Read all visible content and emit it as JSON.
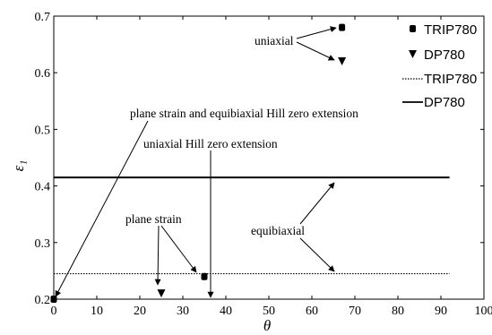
{
  "chart_data": {
    "type": "scatter",
    "xlabel": "θ",
    "ylabel": "ε₁",
    "xlim": [
      0,
      100
    ],
    "ylim": [
      0.2,
      0.7
    ],
    "x_ticks": [
      "0",
      "10",
      "20",
      "30",
      "40",
      "50",
      "60",
      "70",
      "80",
      "90",
      "100"
    ],
    "y_ticks": [
      "0.2",
      "0.3",
      "0.4",
      "0.5",
      "0.6",
      "0.7"
    ],
    "grid": false,
    "legend_position": "top-right",
    "series": [
      {
        "name": "TRIP780",
        "kind": "points",
        "marker": "square",
        "points": [
          [
            0,
            0.2
          ],
          [
            35,
            0.24
          ],
          [
            67,
            0.68
          ]
        ]
      },
      {
        "name": "DP780",
        "kind": "points",
        "marker": "triangle-down",
        "points": [
          [
            25,
            0.21
          ],
          [
            67,
            0.62
          ]
        ]
      },
      {
        "name": "TRIP780",
        "kind": "hline",
        "style": "dotted",
        "y": 0.245,
        "x_range": [
          0,
          92
        ]
      },
      {
        "name": "DP780",
        "kind": "hline",
        "style": "solid",
        "y": 0.415,
        "x_range": [
          0,
          92
        ]
      }
    ],
    "annotations": [
      {
        "text": "uniaxial",
        "targets": [
          [
            67,
            0.68
          ],
          [
            67,
            0.62
          ]
        ]
      },
      {
        "text": "plane strain and equibiaxial Hill zero extension",
        "targets": [
          [
            0,
            0.2
          ]
        ]
      },
      {
        "text": "uniaxial Hill zero extension",
        "targets": [
          [
            36.5,
            0.2
          ]
        ]
      },
      {
        "text": "plane strain",
        "targets": [
          [
            25,
            0.21
          ],
          [
            34,
            0.24
          ]
        ]
      },
      {
        "text": "equibiaxial",
        "targets": [
          [
            67,
            0.41
          ],
          [
            67,
            0.245
          ]
        ]
      }
    ]
  }
}
